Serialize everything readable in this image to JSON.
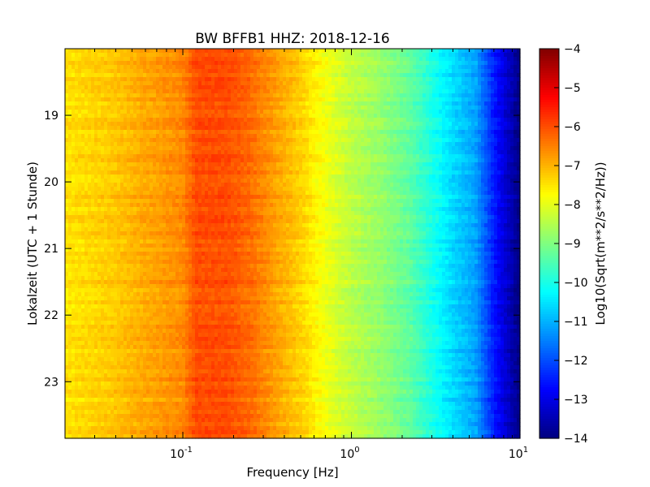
{
  "chart_data": {
    "type": "heatmap",
    "title": "BW BFFB1 HHZ: 2018-12-16",
    "xlabel": "Frequency [Hz]",
    "ylabel": "Lokalzeit (UTC + 1 Stunde)",
    "x_scale": "log",
    "xlim": [
      0.02,
      10
    ],
    "x_ticks": [
      {
        "base": "10",
        "exp": "-1"
      },
      {
        "base": "10",
        "exp": "0"
      },
      {
        "base": "10",
        "exp": "1"
      }
    ],
    "x_tick_values": [
      0.1,
      1,
      10
    ],
    "ylim": [
      18.0,
      23.85
    ],
    "y_axis_inverted": true,
    "y_ticks": [
      "19",
      "20",
      "21",
      "22",
      "23"
    ],
    "y_tick_values": [
      19,
      20,
      21,
      22,
      23
    ],
    "colorbar": {
      "label": "Log10(Sqrt(m**2/s**2/Hz))",
      "colormap": "jet",
      "range": [
        -14,
        -4
      ],
      "ticks": [
        "−4",
        "−5",
        "−6",
        "−7",
        "−8",
        "−9",
        "−10",
        "−11",
        "−12",
        "−13",
        "−14"
      ]
    },
    "frequency_profile": {
      "frequency_hz": [
        0.02,
        0.04,
        0.06,
        0.1,
        0.12,
        0.18,
        0.25,
        0.35,
        0.5,
        0.7,
        1.0,
        1.5,
        2.2,
        3.0,
        4.0,
        5.5,
        7.0,
        10.0
      ],
      "value_log10": [
        -7.5,
        -7.2,
        -6.9,
        -6.6,
        -6.0,
        -6.0,
        -6.3,
        -6.8,
        -7.3,
        -7.9,
        -8.4,
        -8.8,
        -9.3,
        -10.0,
        -10.6,
        -11.2,
        -12.5,
        -14.0
      ]
    },
    "grid": false
  },
  "colors": {
    "background": "#ffffff",
    "axes_edge": "#000000"
  }
}
